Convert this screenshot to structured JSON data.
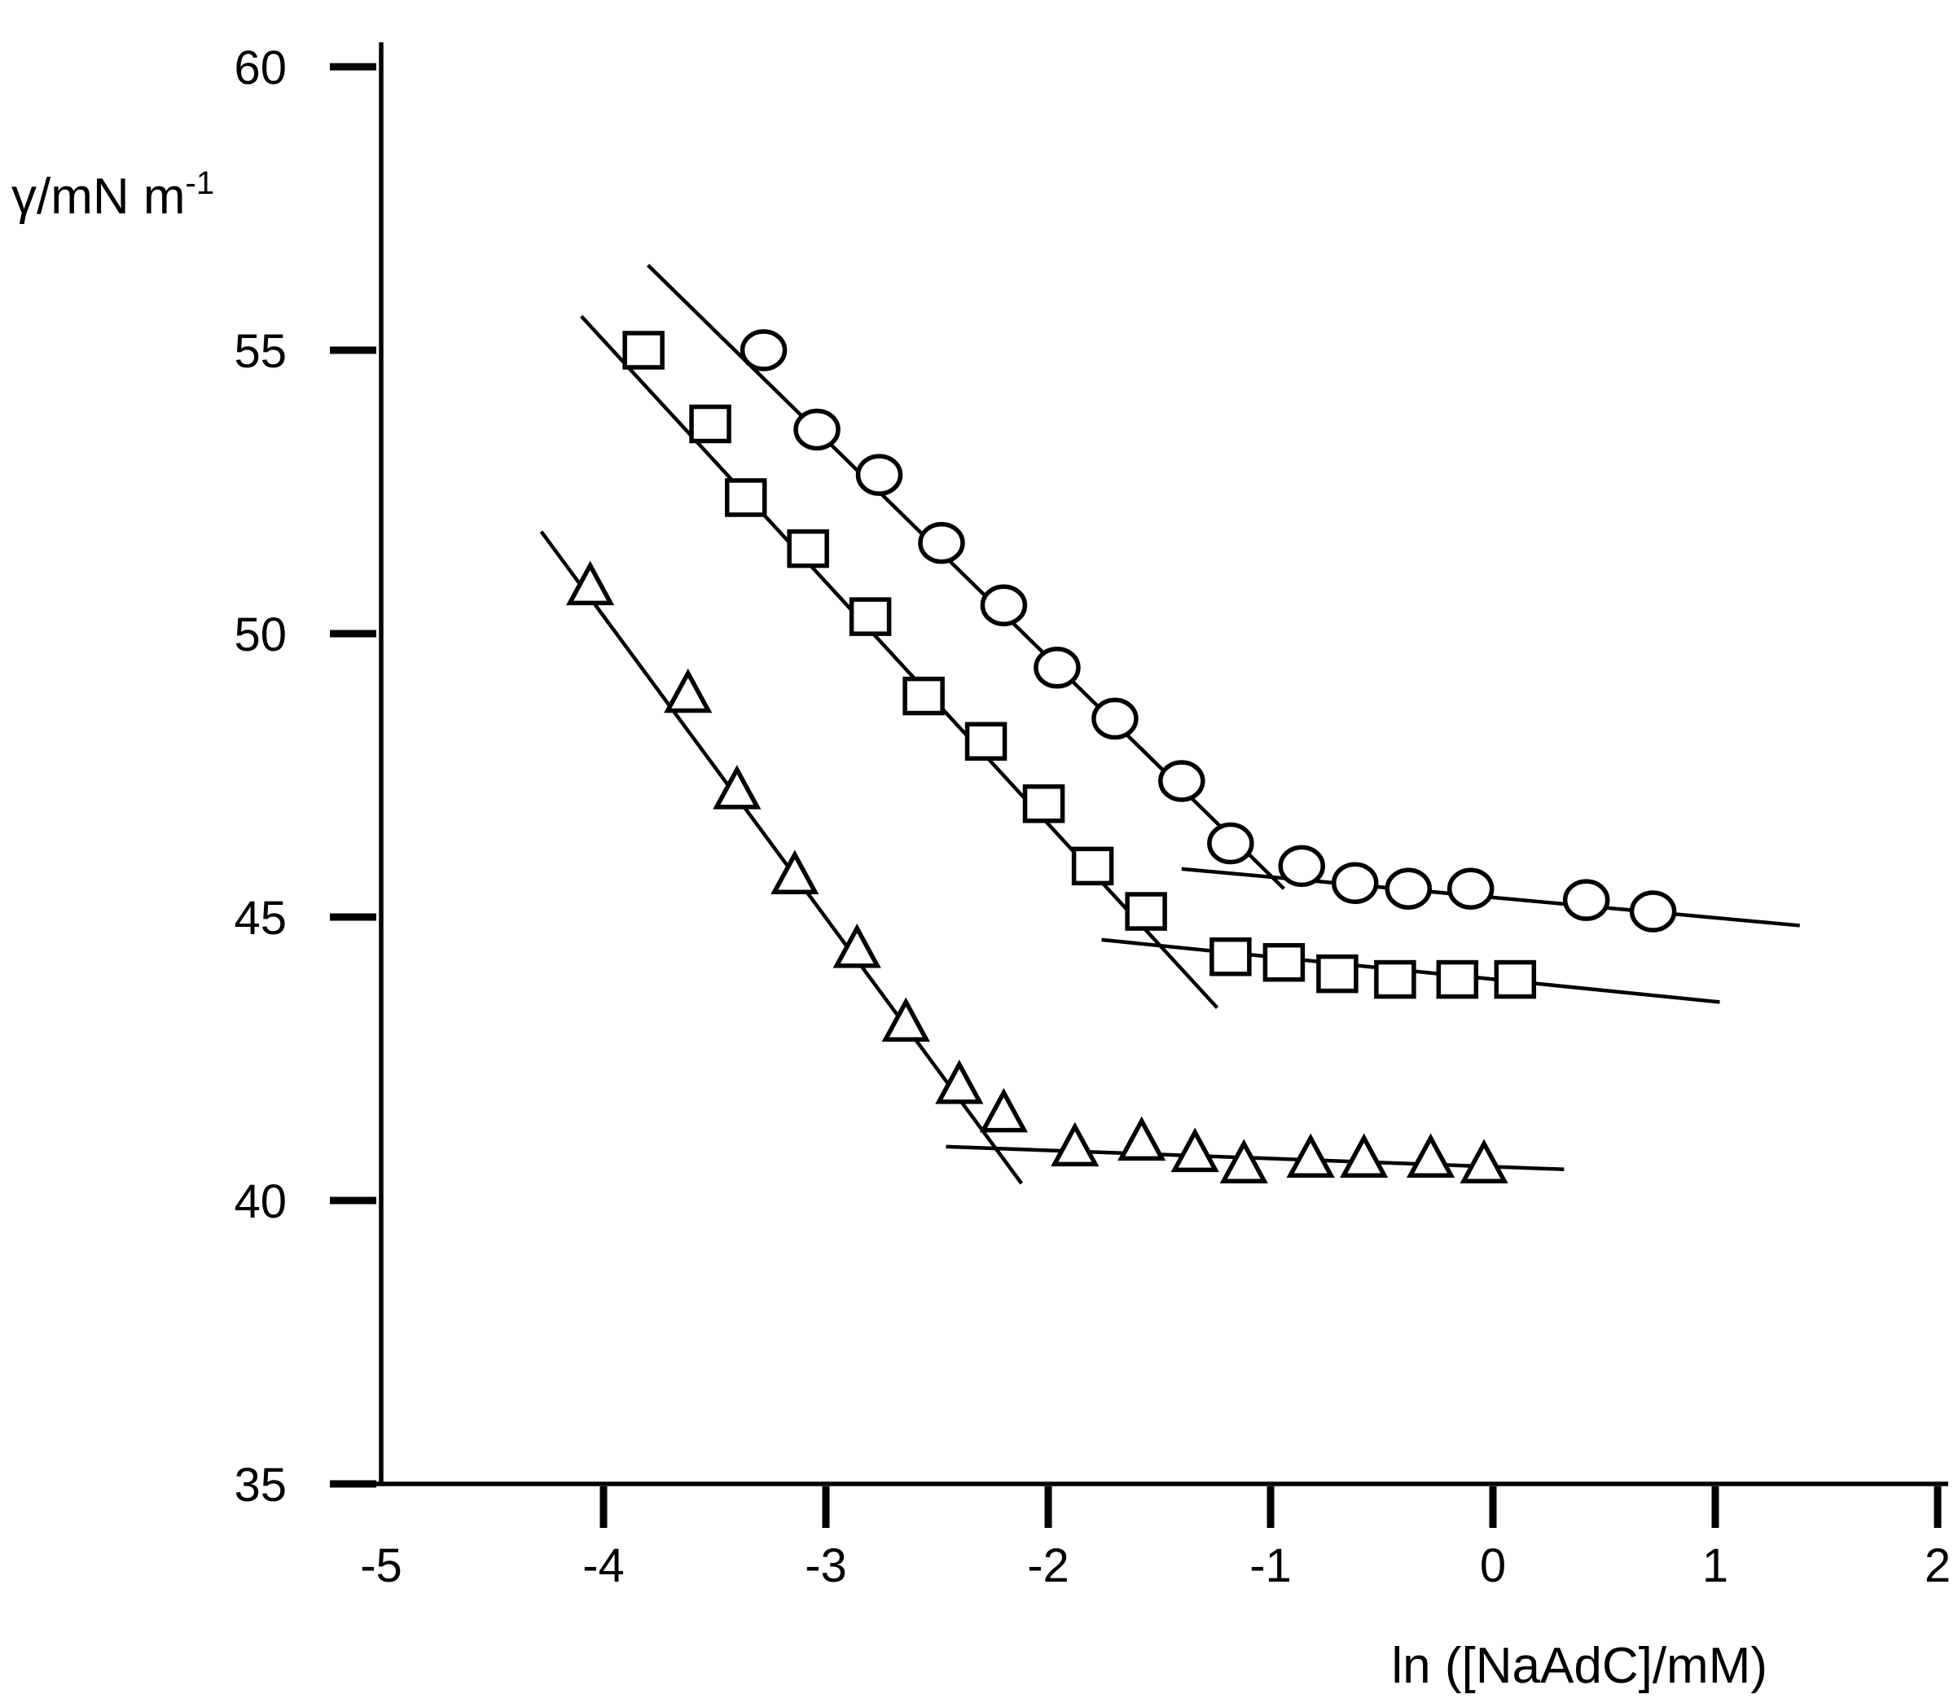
{
  "chart_data": {
    "type": "scatter",
    "title": "",
    "xlabel": "ln ([NaAdC]/mM)",
    "ylabel_text": "γ/mN m",
    "ylabel_sup": "-1",
    "xlim": [
      -5,
      2
    ],
    "ylim": [
      35,
      60
    ],
    "xticks": [
      -5,
      -4,
      -3,
      -2,
      -1,
      0,
      1,
      2
    ],
    "yticks": [
      35,
      40,
      45,
      50,
      55,
      60
    ],
    "grid": false,
    "legend": "none",
    "series": [
      {
        "marker": "circle",
        "x": [
          -3.28,
          -3.04,
          -2.76,
          -2.48,
          -2.2,
          -1.96,
          -1.7,
          -1.4,
          -1.18,
          -0.86,
          -0.62,
          -0.38,
          -0.1,
          0.42,
          0.72
        ],
        "y": [
          55.0,
          53.6,
          52.8,
          51.6,
          50.5,
          49.4,
          48.5,
          47.4,
          46.3,
          45.9,
          45.6,
          45.5,
          45.5,
          45.3,
          45.1
        ]
      },
      {
        "marker": "square",
        "x": [
          -3.82,
          -3.52,
          -3.36,
          -3.08,
          -2.8,
          -2.56,
          -2.28,
          -2.02,
          -1.8,
          -1.56,
          -1.18,
          -0.94,
          -0.7,
          -0.44,
          -0.16,
          0.1
        ],
        "y": [
          55.0,
          53.7,
          52.4,
          51.5,
          50.3,
          48.9,
          48.1,
          47.0,
          45.9,
          45.1,
          44.3,
          44.2,
          44.0,
          43.9,
          43.9,
          43.9
        ]
      },
      {
        "marker": "triangle",
        "x": [
          -4.06,
          -3.62,
          -3.4,
          -3.14,
          -2.86,
          -2.64,
          -2.4,
          -2.2,
          -1.88,
          -1.58,
          -1.34,
          -1.12,
          -0.82,
          -0.58,
          -0.28,
          -0.04
        ],
        "y": [
          50.8,
          48.9,
          47.2,
          45.7,
          44.4,
          43.1,
          42.0,
          41.5,
          40.9,
          41.0,
          40.8,
          40.6,
          40.7,
          40.7,
          40.7,
          40.6
        ]
      }
    ],
    "fit_lines": [
      {
        "x": [
          -3.8,
          -0.94
        ],
        "y": [
          56.5,
          45.5
        ]
      },
      {
        "x": [
          -1.4,
          1.38
        ],
        "y": [
          45.85,
          44.85
        ]
      },
      {
        "x": [
          -4.1,
          -1.24
        ],
        "y": [
          55.6,
          43.4
        ]
      },
      {
        "x": [
          -1.76,
          1.02
        ],
        "y": [
          44.6,
          43.5
        ]
      },
      {
        "x": [
          -4.28,
          -2.12
        ],
        "y": [
          51.8,
          40.3
        ]
      },
      {
        "x": [
          -2.46,
          0.32
        ],
        "y": [
          40.95,
          40.55
        ]
      }
    ]
  }
}
